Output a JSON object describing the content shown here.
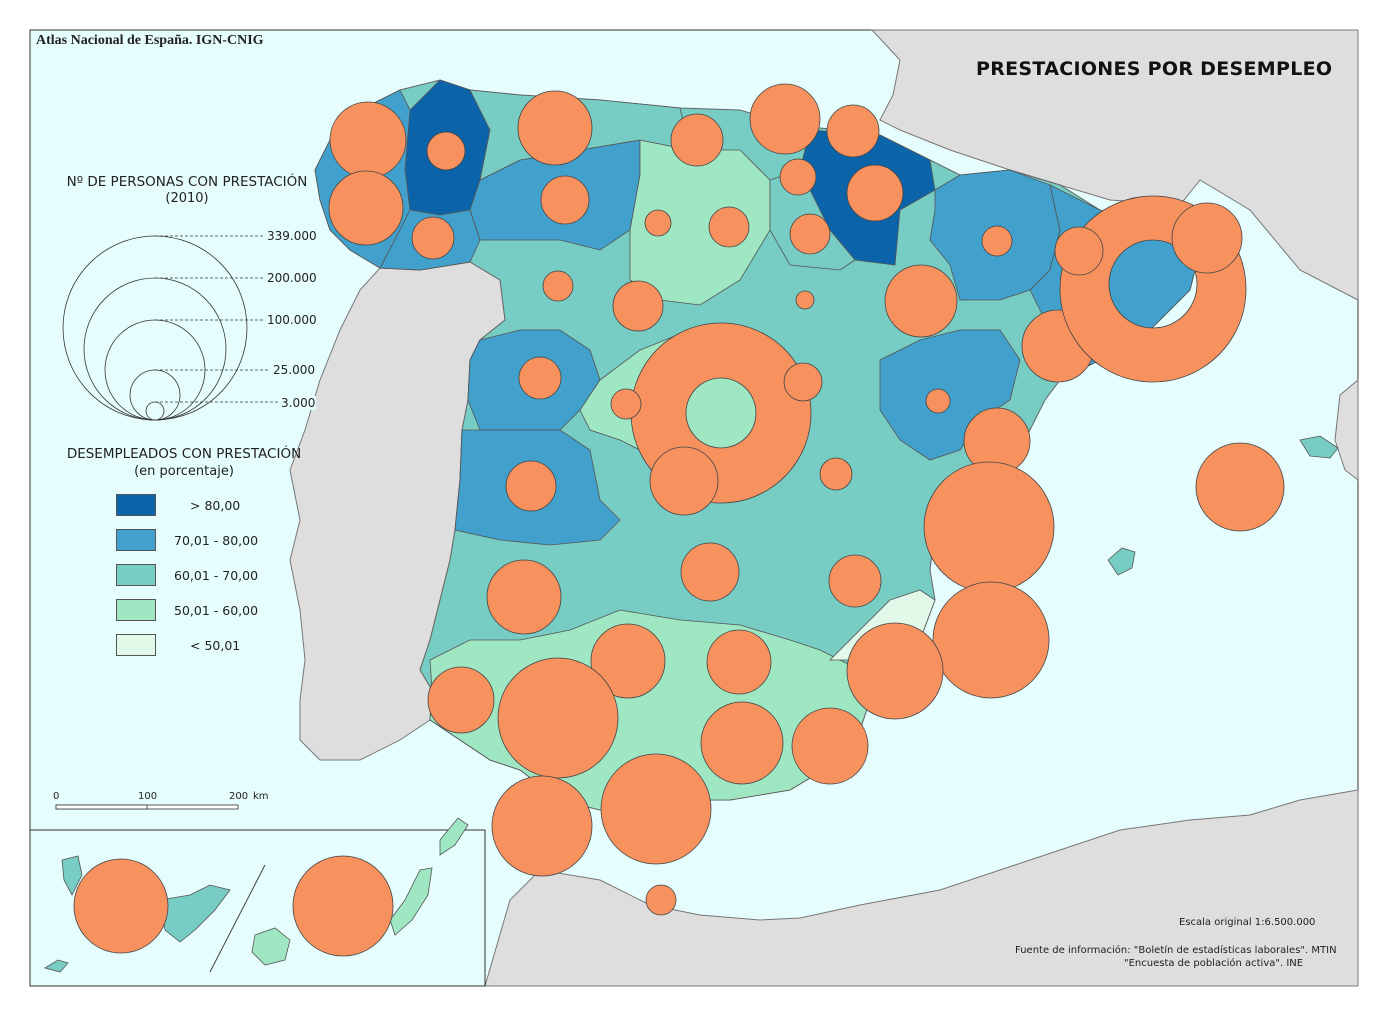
{
  "header": {
    "atlas": "Atlas Nacional de España. IGN-CNIG"
  },
  "title": "PRESTACIONES POR DESEMPLEO",
  "circle_legend": {
    "title": "Nº DE PERSONAS CON PRESTACIÓN",
    "subtitle": "(2010)",
    "values": [
      "339.000",
      "200.000",
      "100.000",
      "25.000",
      "3.000"
    ],
    "symbol_color": "#f7925f"
  },
  "class_legend": {
    "title": "DESEMPLEADOS CON PRESTACIÓN",
    "subtitle": "(en porcentaje)",
    "classes": [
      {
        "label": "> 80,00",
        "color": "#0b64aa"
      },
      {
        "label": "70,01 - 80,00",
        "color": "#41a0cc"
      },
      {
        "label": "60,01 - 70,00",
        "color": "#77ccc4"
      },
      {
        "label": "50,01 - 60,00",
        "color": "#9fe6c2"
      },
      {
        "label": "< 50,01",
        "color": "#e2f8e8"
      }
    ]
  },
  "scale_bar": {
    "ticks": [
      "0",
      "100",
      "200"
    ],
    "unit": "km"
  },
  "scale_text": "Escala original 1:6.500.000",
  "source": {
    "line1": "Fuente de información: \"Boletín de estadísticas laborales\". MTIN",
    "line2": "\"Encuesta de población activa\". INE"
  },
  "colors": {
    "sea": "#e6fdfd",
    "land_other": "#dedede",
    "symbol": "#f7925f"
  }
}
